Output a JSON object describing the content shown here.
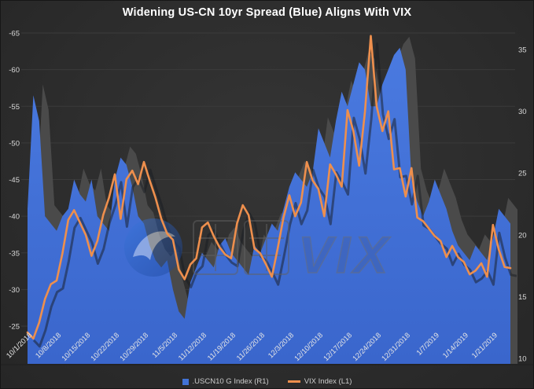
{
  "title": "Widening US-CN 10yr Spread (Blue) Aligns With VIX",
  "watermark": {
    "text": "VIX"
  },
  "legend": [
    {
      "label": ".USCN10 G Index  (R1)",
      "color": "#4273d6",
      "marker": "square"
    },
    {
      "label": "VIX Index  (L1)",
      "color": "#ee8f4d",
      "marker": "line"
    }
  ],
  "chart_data": {
    "type": "combo",
    "title": "Widening US-CN 10yr Spread (Blue) Aligns With VIX",
    "x_tick_labels": [
      "10/1/2018",
      "10/8/2018",
      "10/15/2018",
      "10/22/2018",
      "10/29/2018",
      "11/5/2018",
      "11/12/2018",
      "11/19/2018",
      "11/26/2018",
      "12/3/2018",
      "12/10/2018",
      "12/17/2018",
      "12/24/2018",
      "12/31/2018",
      "1/7/2019",
      "1/14/2019",
      "1/21/2019"
    ],
    "tick_step": 5,
    "left_axis": {
      "ticks": [
        -65,
        -60,
        -55,
        -50,
        -45,
        -40,
        -35,
        -30,
        -25
      ],
      "top_value": -65,
      "bottom_value": -25,
      "inverted": true
    },
    "right_axis": {
      "ticks": [
        35,
        30,
        25,
        20,
        15,
        10
      ],
      "top_value": 35,
      "bottom_value": 10
    },
    "grid": "horizontal",
    "legend_position": "bottom",
    "series": [
      {
        "name": ".USCN10 G Index (R1)",
        "type": "area",
        "axis": "left",
        "color": "#4273d6",
        "values": [
          -41,
          -56.5,
          -53,
          -40,
          -39,
          -38,
          -40,
          -41,
          -45,
          -43,
          -42,
          -45,
          -40,
          -39,
          -38,
          -45,
          -48,
          -47,
          -44,
          -40,
          -39,
          -36,
          -34,
          -33,
          -34,
          -30,
          -27,
          -26,
          -31,
          -33,
          -35,
          -34,
          -33,
          -36,
          -37,
          -35,
          -34,
          -33,
          -32,
          -36,
          -35,
          -37,
          -39,
          -38,
          -41,
          -44,
          -46,
          -45,
          -44,
          -46,
          -52,
          -50,
          -48,
          -53,
          -57,
          -55,
          -58,
          -61,
          -60,
          -55,
          -55,
          -58,
          -60,
          -62,
          -63,
          -60,
          -45,
          -42,
          -40,
          -42,
          -45,
          -43,
          -41,
          -38,
          -36,
          -35,
          -34,
          -36,
          -35,
          -34,
          -37,
          -41,
          -40,
          -39
        ]
      },
      {
        "name": "VIX Index (L1)",
        "type": "line",
        "axis": "right",
        "color": "#ee8f4d",
        "values": [
          12.1,
          11.6,
          12.9,
          14.8,
          16.0,
          16.3,
          18.5,
          21.2,
          22.0,
          21.0,
          20.0,
          18.3,
          19.5,
          21.6,
          23.0,
          24.9,
          21.3,
          24.5,
          25.2,
          24.1,
          25.9,
          24.4,
          23.0,
          21.3,
          20.1,
          19.6,
          17.2,
          16.4,
          17.6,
          18.1,
          20.6,
          21.0,
          19.9,
          19.0,
          18.4,
          18.1,
          20.9,
          22.4,
          21.6,
          18.9,
          18.5,
          17.6,
          16.6,
          18.9,
          21.4,
          23.2,
          21.5,
          22.6,
          25.9,
          24.4,
          23.7,
          21.5,
          25.7,
          24.9,
          23.9,
          30.1,
          28.4,
          25.6,
          30.0,
          36.1,
          30.4,
          28.4,
          30.0,
          25.3,
          25.4,
          23.1,
          25.4,
          21.4,
          21.1,
          20.5,
          19.9,
          19.5,
          18.2,
          19.1,
          18.2,
          17.8,
          16.8,
          17.1,
          17.7,
          16.6,
          20.8,
          18.8,
          17.4,
          17.3
        ]
      }
    ]
  }
}
